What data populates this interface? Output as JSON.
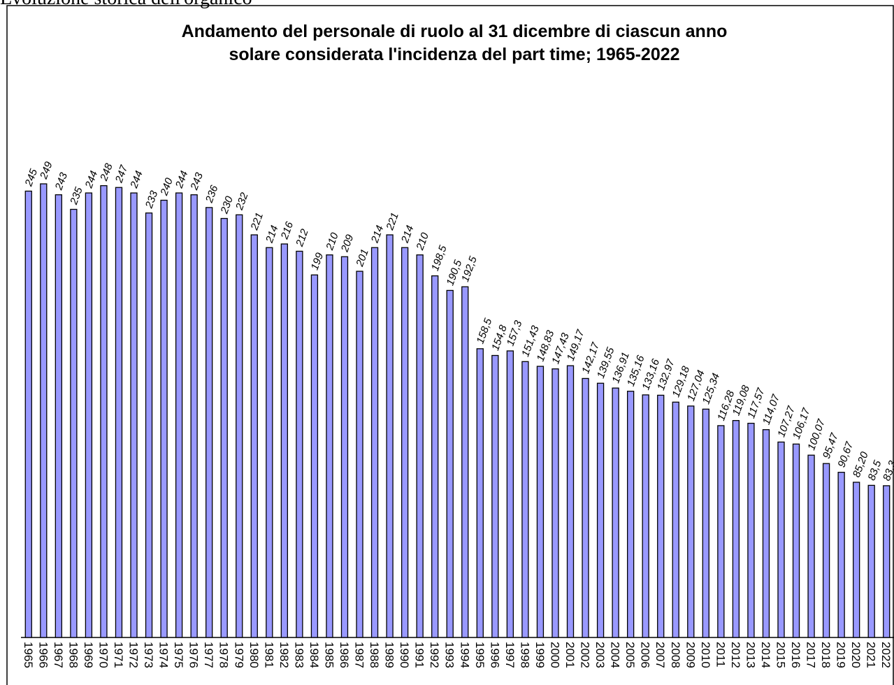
{
  "page_heading": "Evoluzione storica dell'organico",
  "chart_data": {
    "type": "bar",
    "title": "Andamento del personale di ruolo al 31 dicembre di ciascun anno",
    "subtitle": "solare considerata l'incidenza del part time; 1965-2022",
    "color": "#9999ff",
    "categories": [
      "1965",
      "1966",
      "1967",
      "1968",
      "1969",
      "1970",
      "1971",
      "1972",
      "1973",
      "1974",
      "1975",
      "1976",
      "1977",
      "1978",
      "1979",
      "1980",
      "1981",
      "1982",
      "1983",
      "1984",
      "1985",
      "1986",
      "1987",
      "1988",
      "1989",
      "1990",
      "1991",
      "1992",
      "1993",
      "1994",
      "1995",
      "1996",
      "1997",
      "1998",
      "1999",
      "2000",
      "2001",
      "2002",
      "2003",
      "2004",
      "2005",
      "2006",
      "2007",
      "2008",
      "2009",
      "2010",
      "2011",
      "2012",
      "2013",
      "2014",
      "2015",
      "2016",
      "2017",
      "2018",
      "2019",
      "2020",
      "2021",
      "2022"
    ],
    "values": [
      245,
      249,
      243,
      235,
      244,
      248,
      247,
      244,
      233,
      240,
      244,
      243,
      236,
      230,
      232,
      221,
      214,
      216,
      212,
      199,
      210,
      209,
      201,
      214,
      221,
      214,
      210,
      198.5,
      190.5,
      192.5,
      158.5,
      154.8,
      157.3,
      151.43,
      148.83,
      147.43,
      149.17,
      142.17,
      139.55,
      136.91,
      135.16,
      133.16,
      132.97,
      129.18,
      127.04,
      125.34,
      116.28,
      119.08,
      117.57,
      114.07,
      107.27,
      106.17,
      100.07,
      95.47,
      90.67,
      85.2,
      83.5,
      83.3
    ],
    "value_labels": [
      "245",
      "249",
      "243",
      "235",
      "244",
      "248",
      "247",
      "244",
      "233",
      "240",
      "244",
      "243",
      "236",
      "230",
      "232",
      "221",
      "214",
      "216",
      "212",
      "199",
      "210",
      "209",
      "201",
      "214",
      "221",
      "214",
      "210",
      "198,5",
      "190,5",
      "192,5",
      "158,5",
      "154,8",
      "157,3",
      "151,43",
      "148,83",
      "147,43",
      "149,17",
      "142,17",
      "139,55",
      "136,91",
      "135,16",
      "133,16",
      "132,97",
      "129,18",
      "127,04",
      "125,34",
      "116,28",
      "119,08",
      "117,57",
      "114,07",
      "107,27",
      "106,17",
      "100,07",
      "95,47",
      "90,67",
      "85,20",
      "83,5",
      "83,3"
    ]
  }
}
